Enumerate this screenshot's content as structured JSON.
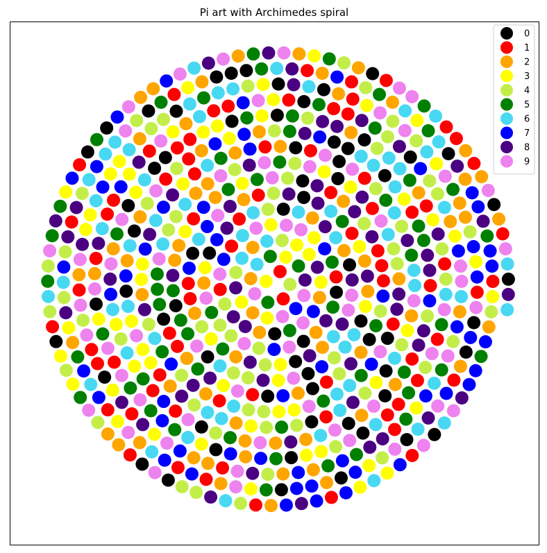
{
  "chart_data": {
    "type": "scatter",
    "title": "Pi art with Archimedes spiral",
    "xlabel": "",
    "ylabel": "",
    "axes_visible": false,
    "grid": false,
    "legend_position": "top-right",
    "spiral": "archimedes",
    "digits": "3141592653589793238462643383279502884197169399375105820974944592307816406286208998628034825342117067982148086513282306647093844609550582231725359408128481117450284102701938521105559644622948954930381964428810975665933446128475648233786783165271201909145648566923460348610454326648213393607260249141273724587006606315588174881520920962829254091715364367892590360011330530548820466521384146951941511609433057270365759591953092186117381932611793105118548074462379962749567351885752724891227938183011949129833673362440656643086021394946395224737190702179860943702770539217176293176752384674818467669405132000568127145263560827785771342757789609173637178721468440901224953430146549585371050792279689258923542019956112129021960864034418159813629774771309960518707211349999998372978049951059731732816096318595024459455346908302642522308253344685035261931188171010003137838752886587533208381420617177669147303598253490428755468731159562863882353787593751957781857780532171226806613001927876611195909216420198",
    "series": [
      {
        "name": "0",
        "color": "#000000"
      },
      {
        "name": "1",
        "color": "#ff0000"
      },
      {
        "name": "2",
        "color": "#ffa500"
      },
      {
        "name": "3",
        "color": "#ffff00"
      },
      {
        "name": "4",
        "color": "#c3ee4a"
      },
      {
        "name": "5",
        "color": "#008000"
      },
      {
        "name": "6",
        "color": "#48d8f2"
      },
      {
        "name": "7",
        "color": "#0000ff"
      },
      {
        "name": "8",
        "color": "#4b0082"
      },
      {
        "name": "9",
        "color": "#ee82ee"
      }
    ]
  }
}
